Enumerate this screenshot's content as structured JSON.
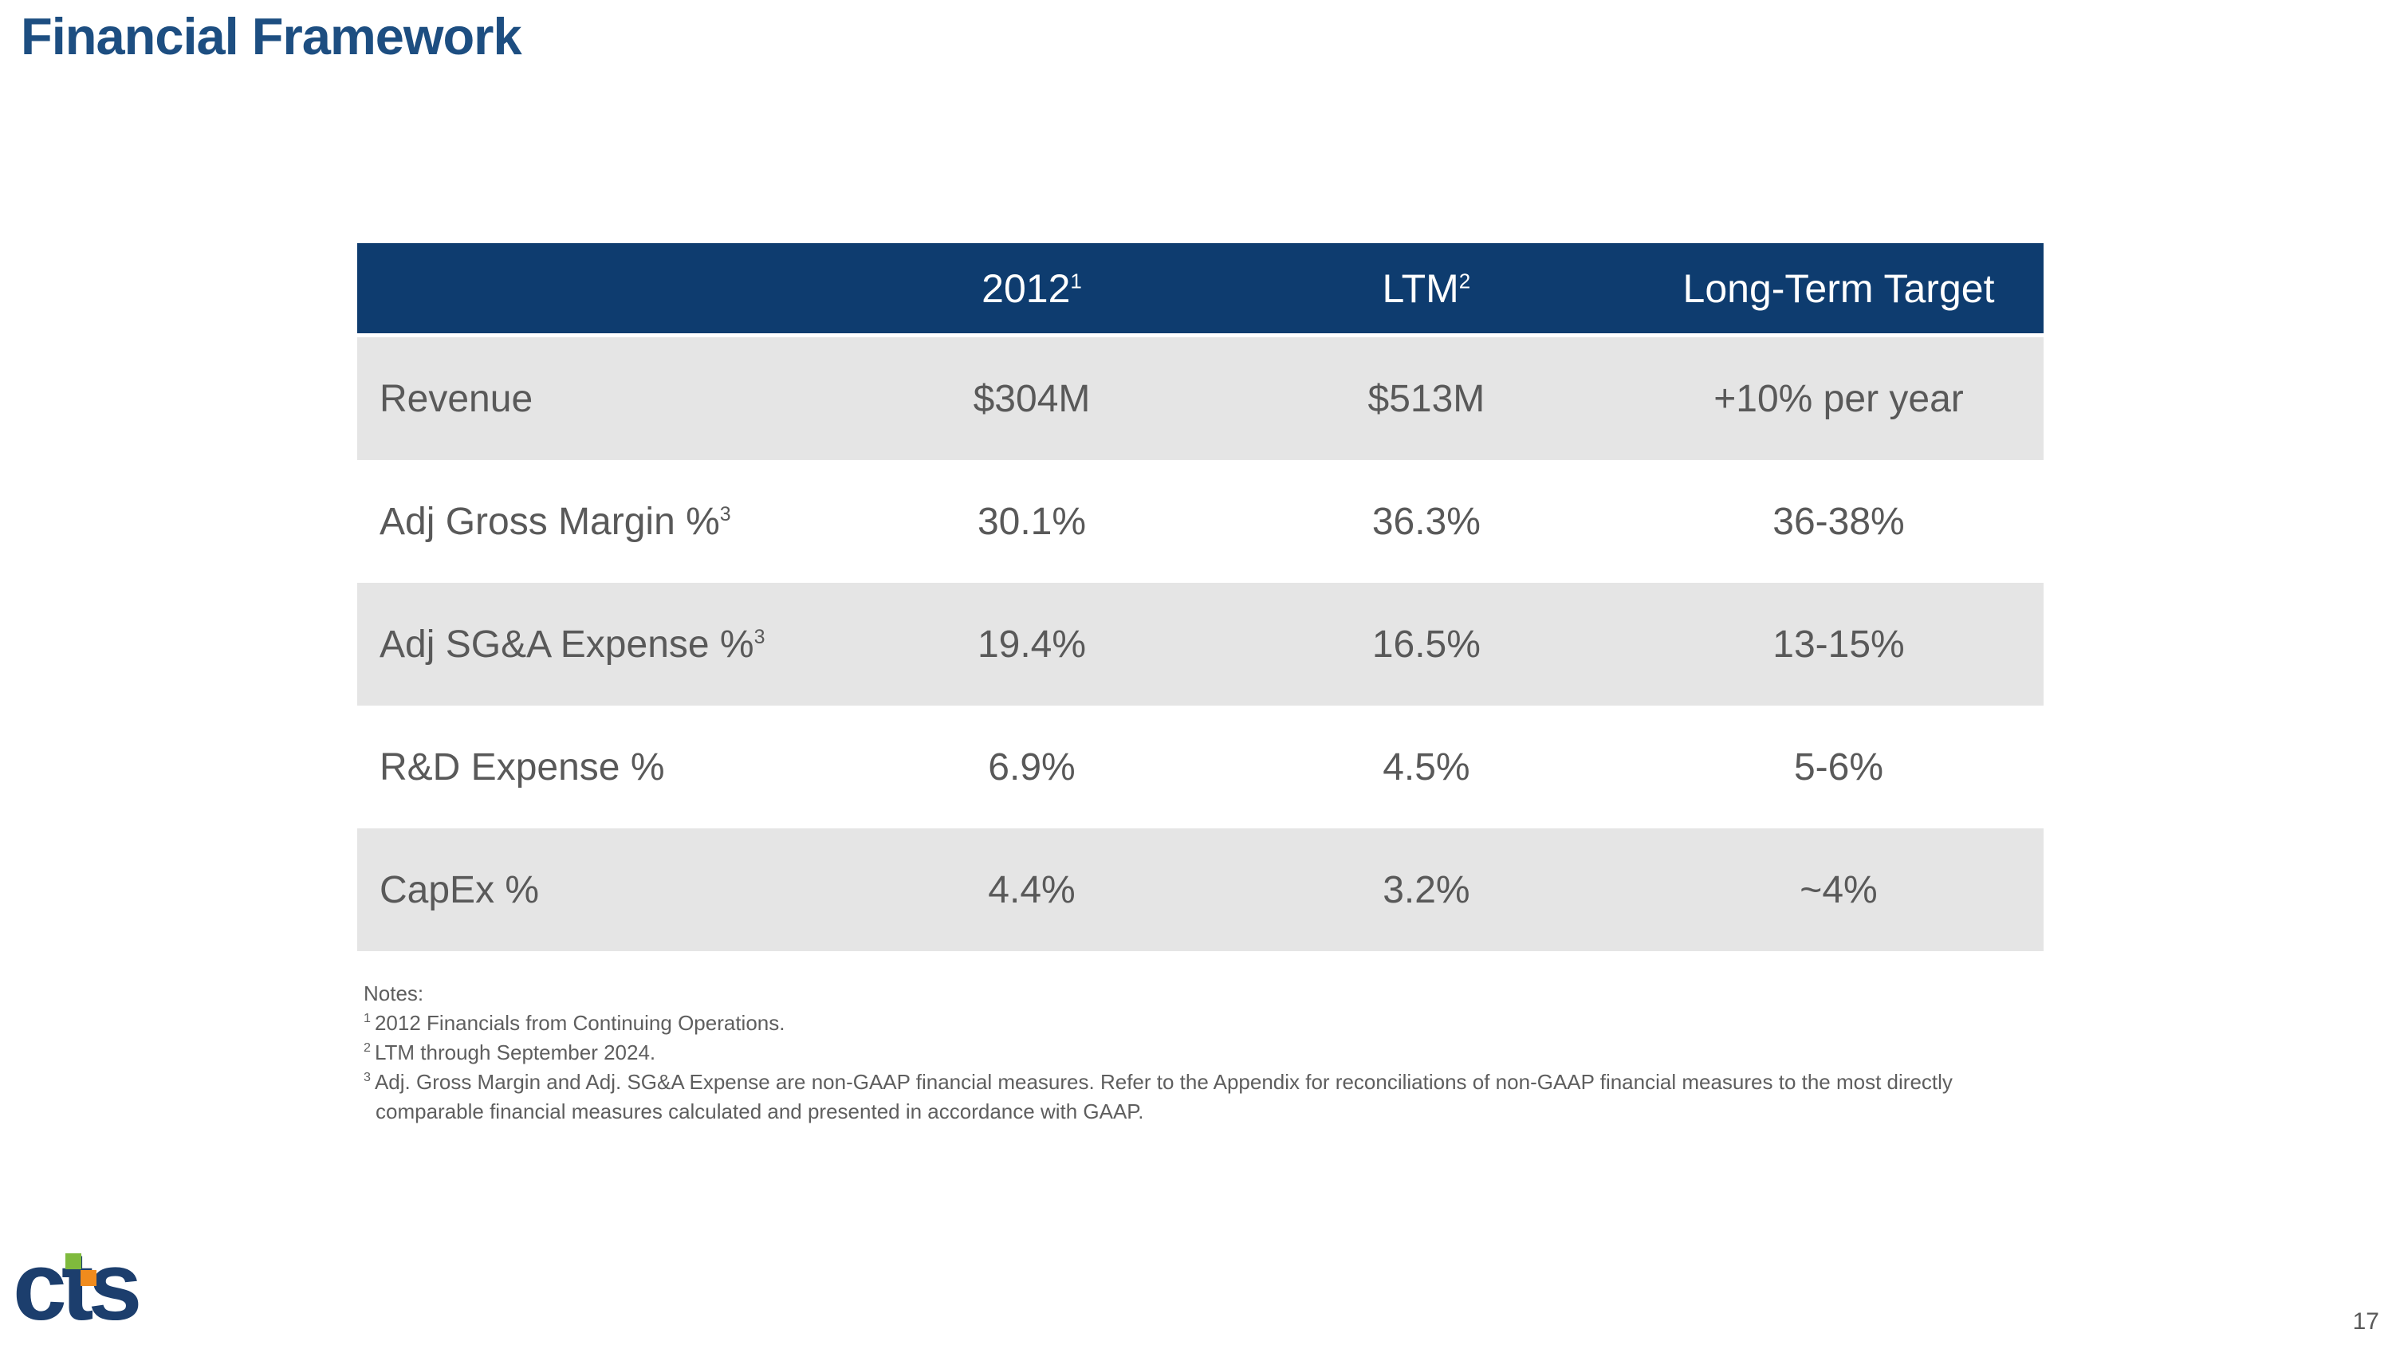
{
  "slide": {
    "title": "Financial Framework",
    "page_number": "17"
  },
  "colors": {
    "title_navy": "#1d4e81",
    "table_header_bg": "#0e3c6f",
    "table_header_text": "#ffffff",
    "row_alt_bg": "#e5e5e5",
    "body_text": "#595959",
    "logo_navy": "#1c3e6d",
    "logo_green": "#7fba3d",
    "logo_orange": "#f08b1d"
  },
  "table": {
    "header": {
      "columns": [
        {
          "label": "2012",
          "sup": "1"
        },
        {
          "label": "LTM",
          "sup": "2"
        },
        {
          "label": "Long-Term Target",
          "sup": ""
        }
      ]
    },
    "rows": [
      {
        "label": "Revenue",
        "sup": "",
        "values": [
          "$304M",
          "$513M",
          "+10% per year"
        ]
      },
      {
        "label": "Adj Gross Margin %",
        "sup": "3",
        "values": [
          "30.1%",
          "36.3%",
          "36-38%"
        ]
      },
      {
        "label": "Adj SG&A Expense %",
        "sup": "3",
        "values": [
          "19.4%",
          "16.5%",
          "13-15%"
        ]
      },
      {
        "label": "R&D Expense %",
        "sup": "",
        "values": [
          "6.9%",
          "4.5%",
          "5-6%"
        ]
      },
      {
        "label": "CapEx %",
        "sup": "",
        "values": [
          "4.4%",
          "3.2%",
          "~4%"
        ]
      }
    ]
  },
  "notes": {
    "heading": "Notes:",
    "items": [
      {
        "sup": "1",
        "text": "2012 Financials from Continuing Operations."
      },
      {
        "sup": "2",
        "text": "LTM through September 2024."
      },
      {
        "sup": "3",
        "text": "Adj. Gross Margin and Adj. SG&A Expense are non-GAAP financial measures. Refer to the Appendix for reconciliations of non-GAAP financial measures to the most directly"
      },
      {
        "sup": "",
        "text": "comparable financial measures calculated and presented in accordance with GAAP."
      }
    ]
  },
  "logo": {
    "text": "cts"
  }
}
